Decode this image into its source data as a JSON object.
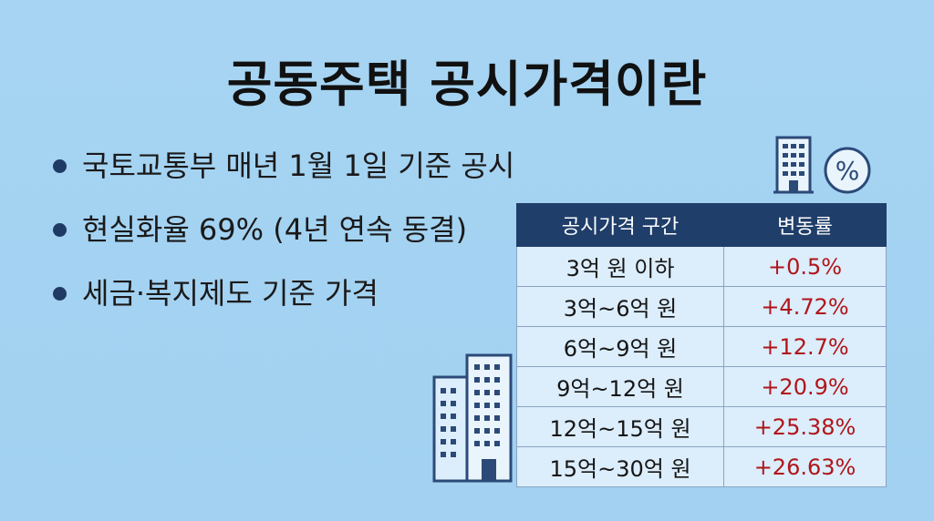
{
  "title": "공동주택 공시가격이란",
  "bullets": [
    "국토교통부 매년 1월 1일 기준 공시",
    "현실화율 69% (4년 연속 동결)",
    "세금·복지제도 기준 가격"
  ],
  "percent_icon_text": "%",
  "table": {
    "headers": [
      "공시가격 구간",
      "변동률"
    ],
    "rows": [
      {
        "range": "3억 원 이하",
        "change": "+0.5%"
      },
      {
        "range": "3억~6억 원",
        "change": "+4.72%"
      },
      {
        "range": "6억~9억 원",
        "change": "+12.7%"
      },
      {
        "range": "9억~12억 원",
        "change": "+20.9%"
      },
      {
        "range": "12억~15억 원",
        "change": "+25.38%"
      },
      {
        "range": "15억~30억 원",
        "change": "+26.63%"
      }
    ]
  },
  "colors": {
    "background": "#a6d4f2",
    "header": "#1f3e6a",
    "change_text": "#b0151a",
    "icon_stroke": "#2b4a78"
  },
  "icons": [
    "building-small-icon",
    "percent-icon",
    "building-large-icon"
  ]
}
